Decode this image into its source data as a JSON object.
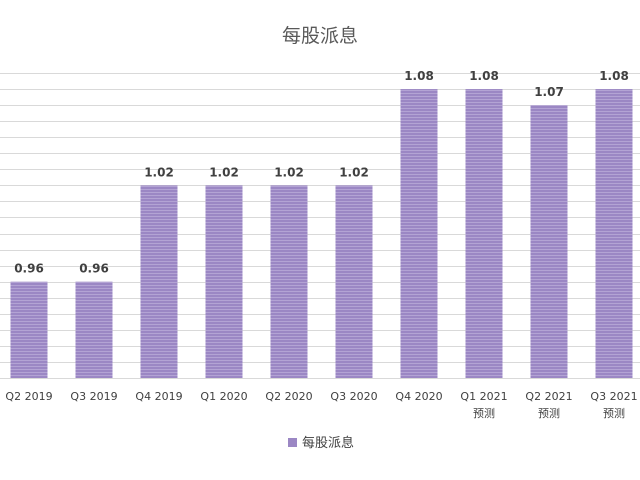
{
  "chart_data": {
    "type": "bar",
    "title": "每股派息",
    "categories": [
      [
        "Q2 2019"
      ],
      [
        "Q3 2019"
      ],
      [
        "Q4 2019"
      ],
      [
        "Q1 2020"
      ],
      [
        "Q2 2020"
      ],
      [
        "Q3 2020"
      ],
      [
        "Q4 2020"
      ],
      [
        "Q1 2021",
        "预测"
      ],
      [
        "Q2 2021",
        "预测"
      ],
      [
        "Q3 2021",
        "预测"
      ]
    ],
    "series": [
      {
        "name": "每股派息",
        "values": [
          0.96,
          0.96,
          1.02,
          1.02,
          1.02,
          1.02,
          1.08,
          1.08,
          1.07,
          1.08
        ],
        "color": "#9b87c4"
      }
    ],
    "data_labels": [
      "0.96",
      "0.96",
      "1.02",
      "1.02",
      "1.02",
      "1.02",
      "1.08",
      "1.08",
      "1.07",
      "1.08"
    ],
    "ylim": [
      0.9,
      1.095
    ],
    "grid": true,
    "legend_position": "bottom",
    "colors": {
      "bar": "#9b87c4",
      "bar_stripe": "#b3a3d4",
      "grid": "#d9d9d9"
    }
  }
}
